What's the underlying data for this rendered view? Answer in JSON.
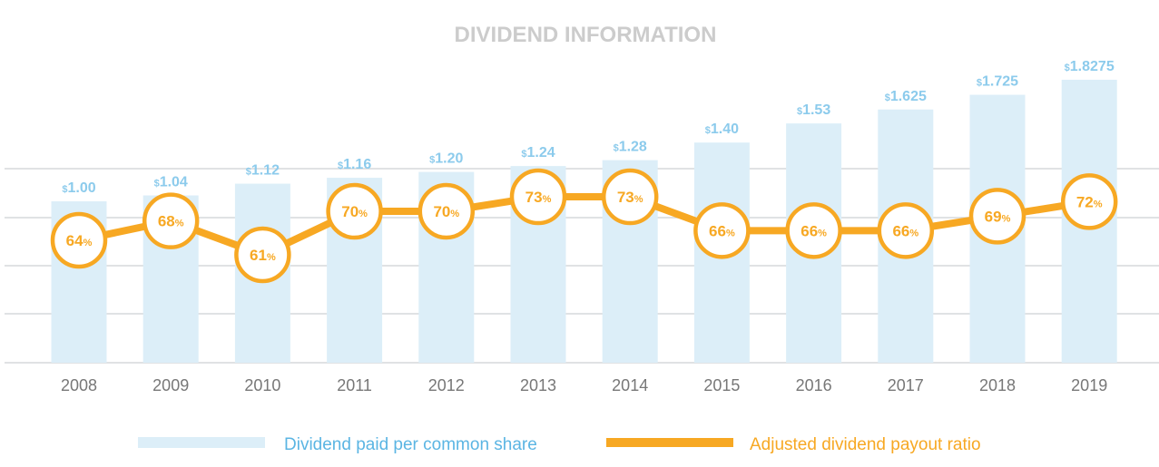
{
  "chart_data": {
    "type": "bar",
    "title": "DIVIDEND INFORMATION",
    "categories": [
      "2008",
      "2009",
      "2010",
      "2011",
      "2012",
      "2013",
      "2014",
      "2015",
      "2016",
      "2017",
      "2018",
      "2019"
    ],
    "series": [
      {
        "name": "Dividend paid per common share",
        "type": "bar",
        "values": [
          1.0,
          1.04,
          1.12,
          1.16,
          1.2,
          1.24,
          1.28,
          1.4,
          1.53,
          1.625,
          1.725,
          1.8275
        ],
        "labels": [
          "1.00",
          "1.04",
          "1.12",
          "1.16",
          "1.20",
          "1.24",
          "1.28",
          "1.40",
          "1.53",
          "1.625",
          "1.725",
          "1.8275"
        ],
        "prefix": "$"
      },
      {
        "name": "Adjusted dividend payout ratio",
        "type": "line",
        "values": [
          64,
          68,
          61,
          70,
          70,
          73,
          73,
          66,
          66,
          66,
          69,
          72
        ],
        "suffix": "%"
      }
    ],
    "legend": "bottom",
    "grid": true,
    "colors": {
      "bar": "#dceef8",
      "bar_label": "#8ccbec",
      "line": "#f7a823",
      "axis_text": "#777777",
      "title": "#cccccc",
      "legend_bar_text": "#5bb5e3"
    }
  }
}
